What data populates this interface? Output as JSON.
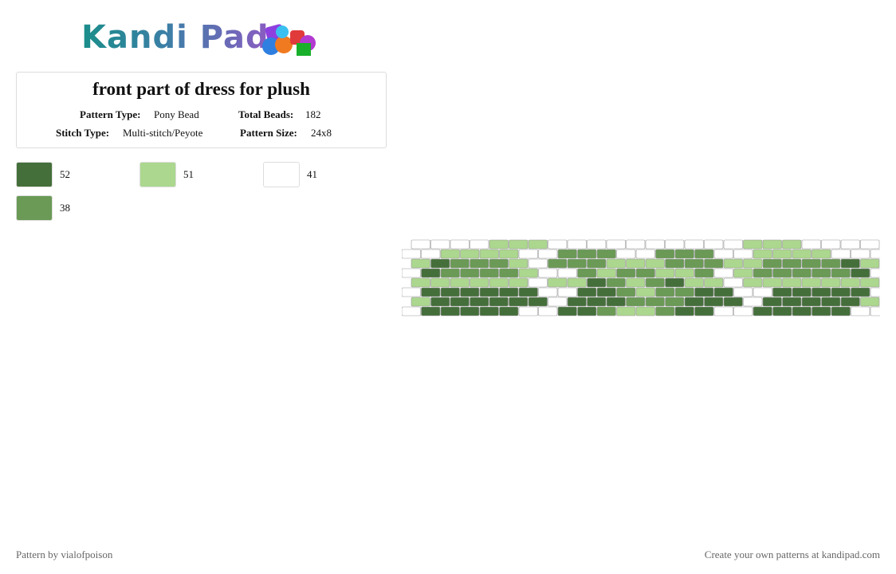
{
  "logo": "Kandi Pad",
  "title": "front part of dress for plush",
  "info": [
    {
      "label": "Pattern Type:",
      "value": "Pony Bead"
    },
    {
      "label": "Total Beads:",
      "value": 182
    },
    {
      "label": "Stitch Type:",
      "value": "Multi-stitch/Peyote"
    },
    {
      "label": "Pattern Size:",
      "value": "24x8"
    }
  ],
  "colors": [
    {
      "color": "#456f3a",
      "count": 52
    },
    {
      "color": "#acd78e",
      "count": 51
    },
    {
      "color": "#ffffff",
      "count": 41
    },
    {
      "color": "#6a9a55",
      "count": 38
    }
  ],
  "footer": {
    "credit": "Pattern by vialofpoison",
    "link": "Create your own patterns at kandipad.com"
  }
}
